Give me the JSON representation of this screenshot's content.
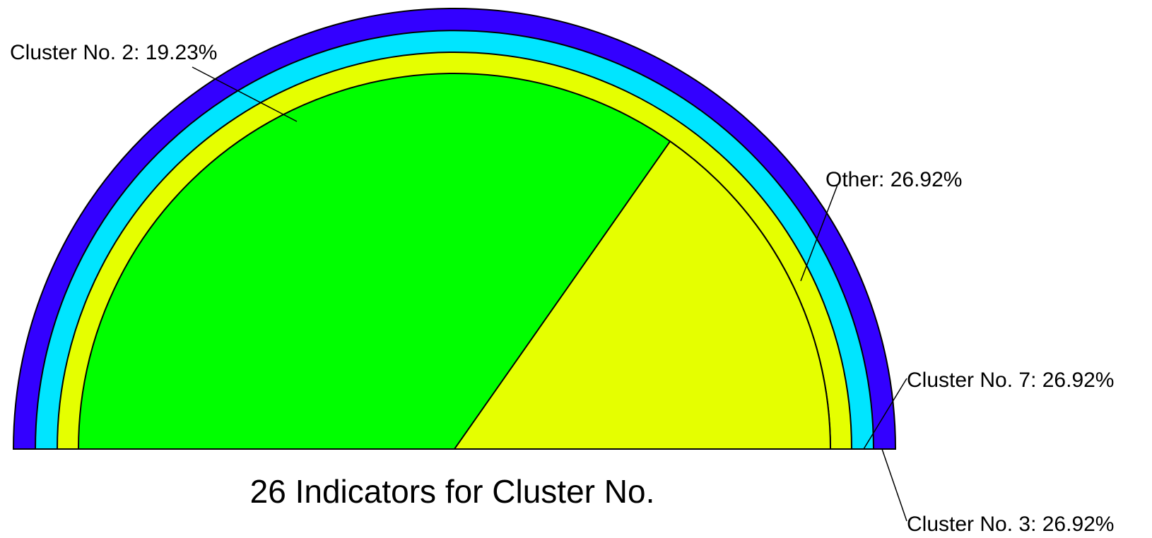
{
  "chart_data": {
    "type": "pie",
    "title": "26 Indicators for Cluster No.",
    "slices": [
      {
        "label": "Cluster No. 2: 19.23%",
        "value": 19.23,
        "color": "#3300ff"
      },
      {
        "label": "Cluster No. 7: 26.92%",
        "value": 26.92,
        "color": "#00e5ff"
      },
      {
        "label": "Cluster No. 3: 26.92%",
        "value": 26.92,
        "color": "#e5ff00"
      },
      {
        "label": "Other: 26.92%",
        "value": 26.92,
        "color": "#00ff00"
      }
    ]
  }
}
